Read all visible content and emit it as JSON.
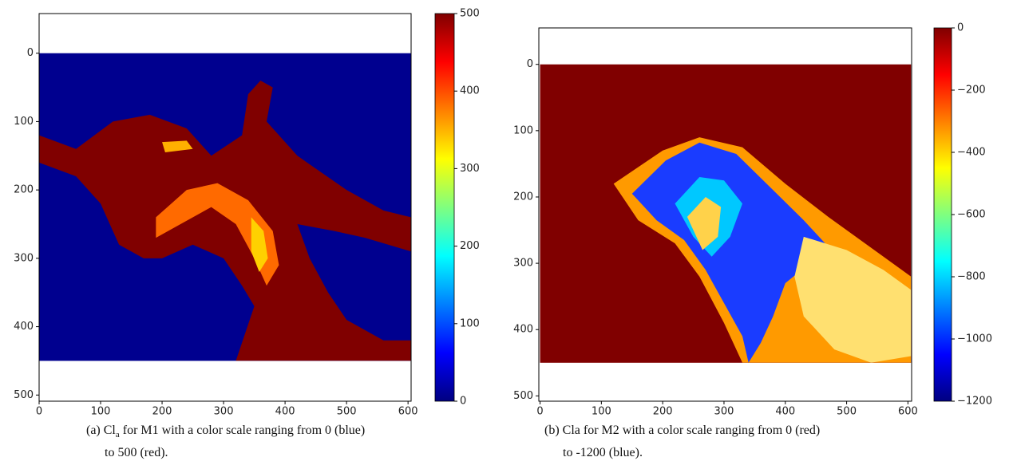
{
  "chart_data": [
    {
      "type": "image",
      "colormap": "jet",
      "xlim": [
        0,
        605
      ],
      "ylim": [
        -58,
        509
      ],
      "y_inverted": true,
      "xticks": [
        0,
        100,
        200,
        300,
        400,
        500,
        600
      ],
      "yticks": [
        0,
        100,
        200,
        300,
        400,
        500
      ],
      "clim": [
        0,
        500
      ],
      "cticks": [
        0,
        100,
        200,
        300,
        400,
        500
      ],
      "caption": {
        "prefix": "(a) Cl",
        "subscript": "a",
        "rest": " for M1 with a color scale ranging from 0 (blue)",
        "line2": "to 500 (red)."
      }
    },
    {
      "type": "image",
      "colormap": "jet",
      "xlim": [
        -2,
        606
      ],
      "ylim": [
        -55,
        508
      ],
      "y_inverted": true,
      "xticks": [
        0,
        100,
        200,
        300,
        400,
        500,
        600
      ],
      "yticks": [
        0,
        100,
        200,
        300,
        400,
        500
      ],
      "clim": [
        -1200,
        0
      ],
      "cticks": [
        {
          "value": -1200,
          "label": "−1200"
        },
        {
          "value": -1000,
          "label": "−1000"
        },
        {
          "value": -800,
          "label": "−800"
        },
        {
          "value": -600,
          "label": "−600"
        },
        {
          "value": -400,
          "label": "−400"
        },
        {
          "value": -200,
          "label": "−200"
        },
        0
      ],
      "caption": {
        "prefix": "(b) Cla for M2 with a color scale ranging from 0 (red)",
        "line2": "to -1200 (blue)."
      }
    }
  ]
}
